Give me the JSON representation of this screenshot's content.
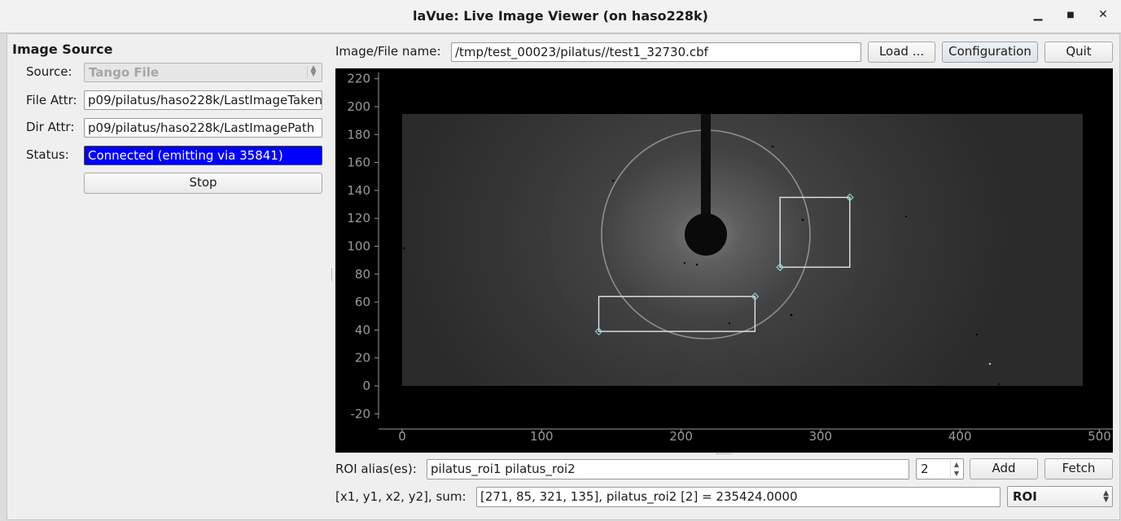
{
  "window": {
    "title": "laVue: Live Image Viewer (on haso228k)",
    "minimize_glyph": "▁",
    "maximize_glyph": "■",
    "close_glyph": "✕"
  },
  "source_panel": {
    "group_title": "Image Source",
    "source_label": "Source:",
    "source_value": "Tango File",
    "file_attr_label": "File Attr:",
    "file_attr_value": "p09/pilatus/haso228k/LastImageTaken",
    "dir_attr_label": "Dir Attr:",
    "dir_attr_value": "p09/pilatus/haso228k/LastImagePath",
    "status_label": "Status:",
    "status_value": "Connected (emitting via 35841)",
    "stop_button": "Stop"
  },
  "toolbar": {
    "file_name_label": "Image/File name:",
    "file_name_value": "/tmp/test_00023/pilatus//test1_32730.cbf",
    "load_button": "Load ...",
    "configuration_button": "Configuration",
    "quit_button": "Quit"
  },
  "plot": {
    "x_ticks": [
      "0",
      "100",
      "200",
      "300",
      "400",
      "500"
    ],
    "y_ticks": [
      "220",
      "200",
      "180",
      "160",
      "140",
      "120",
      "100",
      "80",
      "60",
      "40",
      "20",
      "0",
      "-20"
    ],
    "x_range": [
      0,
      500
    ],
    "y_range": [
      -20,
      220
    ],
    "image_extent": {
      "x": [
        0,
        487
      ],
      "y": [
        0,
        195
      ]
    },
    "roi1": {
      "x1": 141,
      "y1": 39,
      "x2": 253,
      "y2": 64
    },
    "roi2": {
      "x1": 271,
      "y1": 85,
      "x2": 321,
      "y2": 135
    },
    "colors": {
      "roi": "#e6e6e6",
      "handle": "#8fd3d3",
      "axis": "#9a9a9a"
    }
  },
  "roi_bar": {
    "alias_label": "ROI alias(es):",
    "alias_value": "pilatus_roi1 pilatus_roi2",
    "count_value": "2",
    "add_button": "Add",
    "fetch_button": "Fetch"
  },
  "sum_bar": {
    "label": "[x1, y1, x2, y2], sum:",
    "value": "[271, 85, 321, 135], pilatus_roi2 [2] = 235424.0000",
    "mode_value": "ROI"
  }
}
